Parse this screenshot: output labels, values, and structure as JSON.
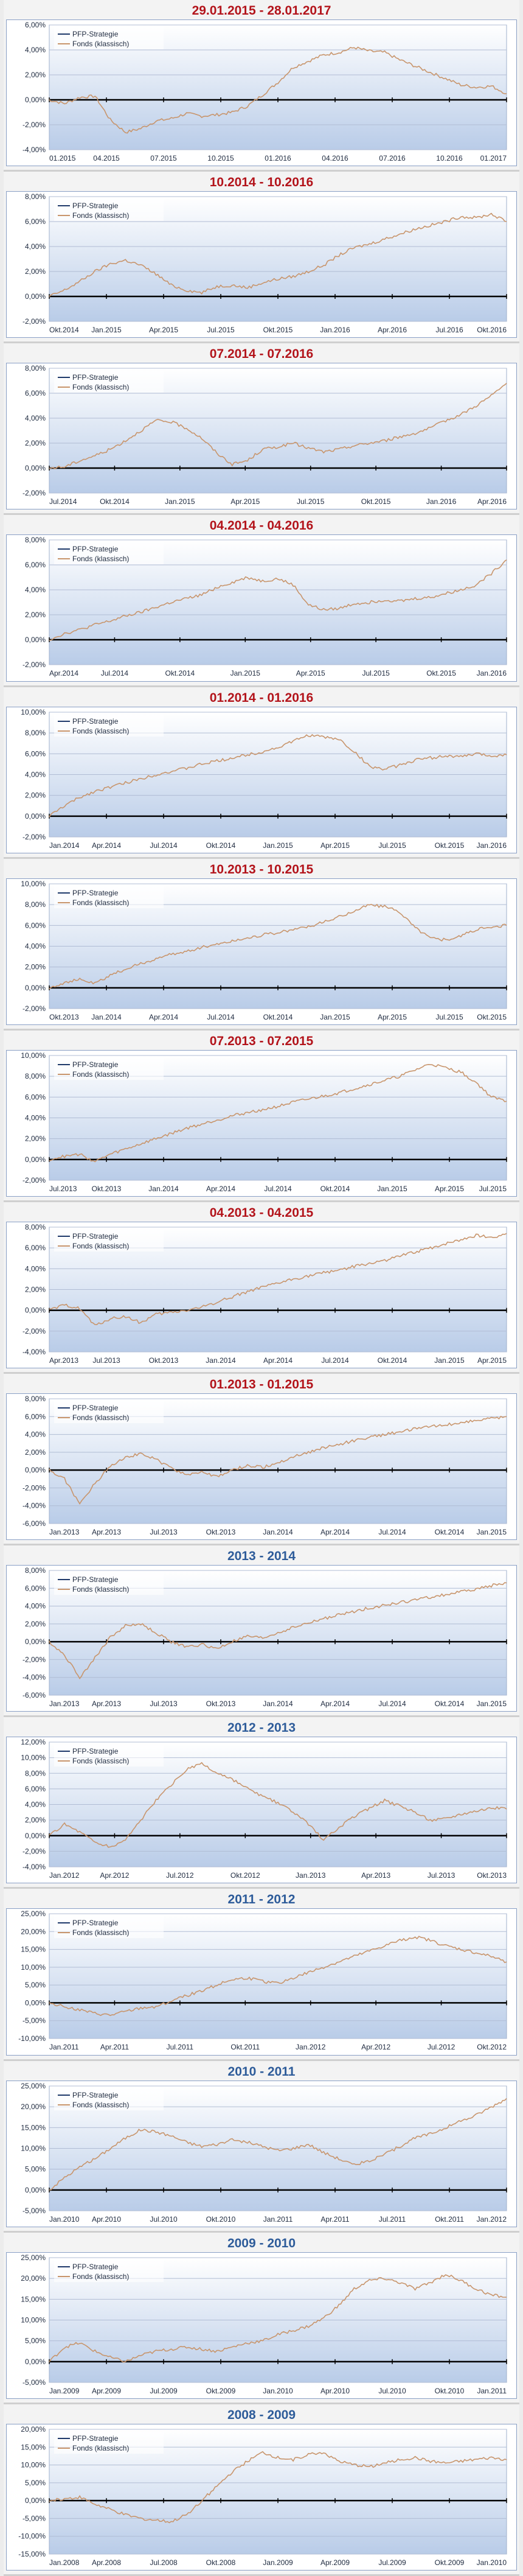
{
  "chart_data": [
    {
      "type": "line",
      "title": "29.01.2015 - 28.01.2017",
      "title_color": "#b3141b",
      "legend": [
        "PFP-Strategie",
        "Fonds (klassisch)"
      ],
      "legend_position": "top-left",
      "y_ticks": [
        "6,00%",
        "4,00%",
        "2,00%",
        "0,00%",
        "-2,00%",
        "-4,00%"
      ],
      "ylim": [
        -4,
        6
      ],
      "x_ticks": [
        "01.2015",
        "04.2015",
        "07.2015",
        "10.2015",
        "01.2016",
        "04.2016",
        "07.2016",
        "10.2016",
        "01.2017"
      ],
      "series": [
        {
          "name": "Fonds (klassisch)",
          "color": "#c8956c",
          "values": [
            0.0,
            -0.3,
            0.2,
            0.3,
            -1.6,
            -2.6,
            -2.3,
            -1.7,
            -1.5,
            -1.1,
            -1.3,
            -1.2,
            -1.0,
            -0.5,
            0.4,
            1.4,
            2.6,
            3.1,
            3.6,
            3.8,
            4.2,
            3.9,
            3.8,
            3.2,
            2.7,
            2.2,
            1.7,
            1.2,
            1.0,
            1.1,
            0.5
          ]
        }
      ]
    },
    {
      "type": "line",
      "title": "10.2014 - 10.2016",
      "title_color": "#b3141b",
      "legend": [
        "PFP-Strategie",
        "Fonds (klassisch)"
      ],
      "legend_position": "top-left",
      "y_ticks": [
        "8,00%",
        "6,00%",
        "4,00%",
        "2,00%",
        "0,00%",
        "-2,00%"
      ],
      "ylim": [
        -2,
        8
      ],
      "x_ticks": [
        "Okt.2014",
        "Jan.2015",
        "Apr.2015",
        "Jul.2015",
        "Okt.2015",
        "Jan.2016",
        "Apr.2016",
        "Jul.2016",
        "Okt.2016"
      ],
      "series": [
        {
          "name": "Fonds (klassisch)",
          "color": "#c8956c",
          "values": [
            0.0,
            0.5,
            1.2,
            2.0,
            2.6,
            2.9,
            2.5,
            1.8,
            0.9,
            0.5,
            0.3,
            0.8,
            0.9,
            0.7,
            1.1,
            1.4,
            1.6,
            2.0,
            2.5,
            3.3,
            3.9,
            4.2,
            4.6,
            5.0,
            5.4,
            5.7,
            6.0,
            6.4,
            6.3,
            6.6,
            6.0
          ]
        }
      ]
    },
    {
      "type": "line",
      "title": "07.2014 - 07.2016",
      "title_color": "#b3141b",
      "legend": [
        "PFP-Strategie",
        "Fonds (klassisch)"
      ],
      "legend_position": "top-left",
      "y_ticks": [
        "8,00%",
        "6,00%",
        "4,00%",
        "2,00%",
        "0,00%",
        "-2,00%"
      ],
      "ylim": [
        -2,
        8
      ],
      "x_ticks": [
        "Jul.2014",
        "Okt.2014",
        "Jan.2015",
        "Apr.2015",
        "Jul.2015",
        "Okt.2015",
        "Jan.2016",
        "Apr.2016"
      ],
      "series": [
        {
          "name": "Fonds (klassisch)",
          "color": "#c8956c",
          "values": [
            0.0,
            0.1,
            0.6,
            1.0,
            1.5,
            2.2,
            3.0,
            3.8,
            3.7,
            3.2,
            2.4,
            1.2,
            0.3,
            0.6,
            1.5,
            1.7,
            2.0,
            1.6,
            1.3,
            1.5,
            1.8,
            2.0,
            2.2,
            2.5,
            2.8,
            3.2,
            3.8,
            4.3,
            5.0,
            5.8,
            6.8
          ]
        }
      ]
    },
    {
      "type": "line",
      "title": "04.2014 - 04.2016",
      "title_color": "#b3141b",
      "legend": [
        "PFP-Strategie",
        "Fonds (klassisch)"
      ],
      "legend_position": "top-left",
      "y_ticks": [
        "8,00%",
        "6,00%",
        "4,00%",
        "2,00%",
        "0,00%",
        "-2,00%"
      ],
      "ylim": [
        -2,
        8
      ],
      "x_ticks": [
        "Apr.2014",
        "Jul.2014",
        "Okt.2014",
        "Jan.2015",
        "Apr.2015",
        "Jul.2015",
        "Okt.2015",
        "Jan.2016"
      ],
      "series": [
        {
          "name": "Fonds (klassisch)",
          "color": "#c8956c",
          "values": [
            0.0,
            0.5,
            0.8,
            1.2,
            1.5,
            1.9,
            2.2,
            2.6,
            3.0,
            3.3,
            3.6,
            4.2,
            4.6,
            5.0,
            4.7,
            4.9,
            4.4,
            2.8,
            2.4,
            2.5,
            2.9,
            3.0,
            3.2,
            3.1,
            3.3,
            3.4,
            3.7,
            4.0,
            4.4,
            5.3,
            6.4
          ]
        }
      ]
    },
    {
      "type": "line",
      "title": "01.2014 - 01.2016",
      "title_color": "#b3141b",
      "legend": [
        "PFP-Strategie",
        "Fonds (klassisch)"
      ],
      "legend_position": "top-left",
      "y_ticks": [
        "10,00%",
        "8,00%",
        "6,00%",
        "4,00%",
        "2,00%",
        "0,00%",
        "-2,00%"
      ],
      "ylim": [
        -2,
        10
      ],
      "x_ticks": [
        "Jan.2014",
        "Apr.2014",
        "Jul.2014",
        "Okt.2014",
        "Jan.2015",
        "Apr.2015",
        "Jul.2015",
        "Okt.2015",
        "Jan.2016"
      ],
      "series": [
        {
          "name": "Fonds (klassisch)",
          "color": "#c8956c",
          "values": [
            0.0,
            1.0,
            1.8,
            2.4,
            2.8,
            3.2,
            3.6,
            4.0,
            4.3,
            4.6,
            5.0,
            5.3,
            5.6,
            5.9,
            6.2,
            6.6,
            7.2,
            7.8,
            7.6,
            7.4,
            6.2,
            4.8,
            4.5,
            4.9,
            5.4,
            5.6,
            5.8,
            5.7,
            6.0,
            5.8,
            5.9
          ]
        }
      ]
    },
    {
      "type": "line",
      "title": "10.2013 - 10.2015",
      "title_color": "#b3141b",
      "legend": [
        "PFP-Strategie",
        "Fonds (klassisch)"
      ],
      "legend_position": "top-left",
      "y_ticks": [
        "10,00%",
        "8,00%",
        "6,00%",
        "4,00%",
        "2,00%",
        "0,00%",
        "-2,00%"
      ],
      "ylim": [
        -2,
        10
      ],
      "x_ticks": [
        "Okt.2013",
        "Jan.2014",
        "Apr.2014",
        "Jul.2014",
        "Okt.2014",
        "Jan.2015",
        "Apr.2015",
        "Jul.2015",
        "Okt.2015"
      ],
      "series": [
        {
          "name": "Fonds (klassisch)",
          "color": "#c8956c",
          "values": [
            0.0,
            0.5,
            0.8,
            0.4,
            1.2,
            1.8,
            2.3,
            2.8,
            3.2,
            3.5,
            3.9,
            4.2,
            4.5,
            4.8,
            5.1,
            5.3,
            5.6,
            5.9,
            6.3,
            6.8,
            7.4,
            8.0,
            7.8,
            7.3,
            5.8,
            4.8,
            4.6,
            5.0,
            5.6,
            5.8,
            6.0
          ]
        }
      ]
    },
    {
      "type": "line",
      "title": "07.2013 - 07.2015",
      "title_color": "#b3141b",
      "legend": [
        "PFP-Strategie",
        "Fonds (klassisch)"
      ],
      "legend_position": "top-left",
      "y_ticks": [
        "10,00%",
        "8,00%",
        "6,00%",
        "4,00%",
        "2,00%",
        "0,00%",
        "-2,00%"
      ],
      "ylim": [
        -2,
        10
      ],
      "x_ticks": [
        "Jul.2013",
        "Okt.2013",
        "Jan.2014",
        "Apr.2014",
        "Jul.2014",
        "Okt.2014",
        "Jan.2015",
        "Apr.2015",
        "Jul.2015"
      ],
      "series": [
        {
          "name": "Fonds (klassisch)",
          "color": "#c8956c",
          "values": [
            0.0,
            0.3,
            0.5,
            -0.2,
            0.5,
            1.0,
            1.5,
            2.0,
            2.5,
            3.0,
            3.4,
            3.8,
            4.2,
            4.5,
            4.8,
            5.1,
            5.5,
            5.8,
            6.1,
            6.4,
            6.8,
            7.2,
            7.6,
            8.0,
            8.6,
            9.2,
            8.8,
            8.4,
            7.4,
            6.0,
            5.6
          ]
        }
      ]
    },
    {
      "type": "line",
      "title": "04.2013 - 04.2015",
      "title_color": "#b3141b",
      "legend": [
        "PFP-Strategie",
        "Fonds (klassisch)"
      ],
      "legend_position": "top-left",
      "y_ticks": [
        "8,00%",
        "6,00%",
        "4,00%",
        "2,00%",
        "0,00%",
        "-2,00%",
        "-4,00%"
      ],
      "ylim": [
        -4,
        8
      ],
      "x_ticks": [
        "Apr.2013",
        "Jul.2013",
        "Okt.2013",
        "Jan.2014",
        "Apr.2014",
        "Jul.2014",
        "Okt.2014",
        "Jan.2015",
        "Apr.2015"
      ],
      "series": [
        {
          "name": "Fonds (klassisch)",
          "color": "#c8956c",
          "values": [
            0.0,
            0.5,
            0.2,
            -1.5,
            -0.8,
            -0.6,
            -1.2,
            -0.4,
            -0.2,
            0.0,
            0.3,
            0.8,
            1.3,
            1.8,
            2.2,
            2.6,
            3.0,
            3.3,
            3.6,
            3.9,
            4.2,
            4.5,
            4.8,
            5.2,
            5.6,
            6.0,
            6.4,
            6.8,
            7.2,
            7.0,
            7.4
          ]
        }
      ]
    },
    {
      "type": "line",
      "title": "01.2013 - 01.2015",
      "title_color": "#b3141b",
      "legend": [
        "PFP-Strategie",
        "Fonds (klassisch)"
      ],
      "legend_position": "top-left",
      "y_ticks": [
        "8,00%",
        "6,00%",
        "4,00%",
        "2,00%",
        "0,00%",
        "-2,00%",
        "-4,00%",
        "-6,00%"
      ],
      "ylim": [
        -6,
        8
      ],
      "x_ticks": [
        "Jan.2013",
        "Apr.2013",
        "Jul.2013",
        "Okt.2013",
        "Jan.2014",
        "Apr.2014",
        "Jul.2014",
        "Okt.2014",
        "Jan.2015"
      ],
      "series": [
        {
          "name": "Fonds (klassisch)",
          "color": "#c8956c",
          "values": [
            0.0,
            -1.0,
            -3.8,
            -1.5,
            0.5,
            1.5,
            1.8,
            1.2,
            0.2,
            -0.5,
            -0.2,
            -0.8,
            0.0,
            0.5,
            0.3,
            0.8,
            1.5,
            2.0,
            2.5,
            2.9,
            3.3,
            3.7,
            4.0,
            4.3,
            4.6,
            4.9,
            5.1,
            5.3,
            5.6,
            5.8,
            6.0
          ]
        }
      ]
    },
    {
      "type": "line",
      "title": "2013 - 2014",
      "title_color": "#2e5c9a",
      "legend": [
        "PFP-Strategie",
        "Fonds (klassisch)"
      ],
      "legend_position": "top-left",
      "y_ticks": [
        "8,00%",
        "6,00%",
        "4,00%",
        "2,00%",
        "0,00%",
        "-2,00%",
        "-4,00%",
        "-6,00%"
      ],
      "ylim": [
        -6,
        8
      ],
      "x_ticks": [
        "Jan.2013",
        "Apr.2013",
        "Jul.2013",
        "Okt.2013",
        "Jan.2014",
        "Apr.2014",
        "Jul.2014",
        "Okt.2014",
        "Jan.2015"
      ],
      "series": [
        {
          "name": "Fonds (klassisch)",
          "color": "#c8956c",
          "values": [
            0.0,
            -1.5,
            -4.0,
            -1.8,
            0.5,
            1.8,
            2.0,
            1.0,
            0.0,
            -0.6,
            -0.3,
            -0.8,
            0.0,
            0.6,
            0.4,
            1.0,
            1.6,
            2.1,
            2.6,
            3.0,
            3.4,
            3.8,
            4.1,
            4.4,
            4.7,
            5.0,
            5.3,
            5.6,
            5.9,
            6.3,
            6.6
          ]
        }
      ]
    },
    {
      "type": "line",
      "title": "2012 - 2013",
      "title_color": "#2e5c9a",
      "legend": [
        "PFP-Strategie",
        "Fonds (klassisch)"
      ],
      "legend_position": "top-left",
      "y_ticks": [
        "12,00%",
        "10,00%",
        "8,00%",
        "6,00%",
        "4,00%",
        "2,00%",
        "0,00%",
        "-2,00%",
        "-4,00%"
      ],
      "ylim": [
        -4,
        12
      ],
      "x_ticks": [
        "Jan.2012",
        "Apr.2012",
        "Jul.2012",
        "Okt.2012",
        "Jan.2013",
        "Apr.2013",
        "Jul.2013",
        "Okt.2013"
      ],
      "series": [
        {
          "name": "Fonds (klassisch)",
          "color": "#c8956c",
          "values": [
            0.0,
            1.5,
            0.5,
            -0.8,
            -1.5,
            -0.5,
            2.0,
            4.5,
            6.5,
            8.5,
            9.2,
            8.0,
            7.2,
            6.0,
            5.0,
            4.2,
            3.0,
            1.5,
            -0.5,
            1.0,
            2.5,
            3.5,
            4.5,
            3.8,
            3.0,
            2.0,
            2.2,
            2.8,
            3.2,
            3.6,
            3.4
          ]
        }
      ]
    },
    {
      "type": "line",
      "title": "2011 - 2012",
      "title_color": "#2e5c9a",
      "legend": [
        "PFP-Strategie",
        "Fonds (klassisch)"
      ],
      "legend_position": "top-left",
      "y_ticks": [
        "25,00%",
        "20,00%",
        "15,00%",
        "10,00%",
        "5,00%",
        "0,00%",
        "-5,00%",
        "-10,00%"
      ],
      "ylim": [
        -10,
        25
      ],
      "x_ticks": [
        "Jan.2011",
        "Apr.2011",
        "Jul.2011",
        "Okt.2011",
        "Jan.2012",
        "Apr.2012",
        "Jul.2012",
        "Okt.2012"
      ],
      "series": [
        {
          "name": "Fonds (klassisch)",
          "color": "#c8956c",
          "values": [
            0.0,
            -1.0,
            -2.0,
            -3.0,
            -3.5,
            -2.5,
            -1.5,
            -1.0,
            0.5,
            2.0,
            3.5,
            5.0,
            6.5,
            7.0,
            6.0,
            5.5,
            7.0,
            8.5,
            10.0,
            11.5,
            13.0,
            14.5,
            16.0,
            17.5,
            18.5,
            17.5,
            16.0,
            15.0,
            14.0,
            13.0,
            11.5
          ]
        }
      ]
    },
    {
      "type": "line",
      "title": "2010 - 2011",
      "title_color": "#2e5c9a",
      "legend": [
        "PFP-Strategie",
        "Fonds (klassisch)"
      ],
      "legend_position": "top-left",
      "y_ticks": [
        "25,00%",
        "20,00%",
        "15,00%",
        "10,00%",
        "5,00%",
        "0,00%",
        "-5,00%"
      ],
      "ylim": [
        -5,
        25
      ],
      "x_ticks": [
        "Jan.2010",
        "Apr.2010",
        "Jul.2010",
        "Okt.2010",
        "Jan.2011",
        "Apr.2011",
        "Jul.2011",
        "Okt.2011",
        "Jan.2012"
      ],
      "series": [
        {
          "name": "Fonds (klassisch)",
          "color": "#c8956c",
          "values": [
            0.0,
            3.0,
            5.5,
            7.5,
            10.0,
            12.5,
            14.5,
            14.0,
            13.0,
            11.5,
            10.5,
            11.0,
            12.0,
            11.5,
            10.5,
            9.5,
            10.0,
            11.0,
            9.0,
            7.5,
            6.0,
            7.0,
            8.5,
            10.5,
            12.5,
            13.5,
            15.0,
            16.5,
            18.0,
            20.0,
            22.0
          ]
        }
      ]
    },
    {
      "type": "line",
      "title": "2009 - 2010",
      "title_color": "#2e5c9a",
      "legend": [
        "PFP-Strategie",
        "Fonds (klassisch)"
      ],
      "legend_position": "top-left",
      "y_ticks": [
        "25,00%",
        "20,00%",
        "15,00%",
        "10,00%",
        "5,00%",
        "0,00%",
        "-5,00%"
      ],
      "ylim": [
        -5,
        25
      ],
      "x_ticks": [
        "Jan.2009",
        "Apr.2009",
        "Jul.2009",
        "Okt.2009",
        "Jan.2010",
        "Apr.2010",
        "Jul.2010",
        "Okt.2010",
        "Jan.2011"
      ],
      "series": [
        {
          "name": "Fonds (klassisch)",
          "color": "#c8956c",
          "values": [
            0.0,
            3.5,
            4.5,
            2.5,
            1.0,
            0.0,
            1.5,
            2.5,
            3.0,
            3.5,
            3.0,
            2.5,
            3.5,
            4.5,
            5.0,
            6.5,
            7.5,
            8.5,
            10.5,
            13.5,
            17.5,
            19.5,
            20.0,
            19.0,
            17.5,
            19.0,
            21.0,
            19.5,
            17.5,
            16.0,
            15.5
          ]
        }
      ]
    },
    {
      "type": "line",
      "title": "2008 - 2009",
      "title_color": "#2e5c9a",
      "legend": [
        "PFP-Strategie",
        "Fonds (klassisch)"
      ],
      "legend_position": "top-left",
      "y_ticks": [
        "20,00%",
        "15,00%",
        "10,00%",
        "5,00%",
        "0,00%",
        "-5,00%",
        "-10,00%",
        "-15,00%"
      ],
      "ylim": [
        -15,
        20
      ],
      "x_ticks": [
        "Jan.2008",
        "Apr.2008",
        "Jul.2008",
        "Okt.2008",
        "Jan.2009",
        "Apr.2009",
        "Jul.2009",
        "Okt.2009",
        "Jan.2010"
      ],
      "series": [
        {
          "name": "Fonds (klassisch)",
          "color": "#c8956c",
          "values": [
            0.0,
            0.5,
            1.0,
            -1.0,
            -2.5,
            -4.0,
            -5.0,
            -5.5,
            -6.0,
            -4.0,
            0.0,
            4.0,
            8.0,
            11.0,
            13.5,
            12.0,
            11.5,
            13.0,
            13.5,
            11.0,
            10.0,
            9.5,
            10.5,
            11.5,
            12.0,
            11.0,
            10.5,
            11.0,
            11.5,
            12.0,
            11.5
          ]
        }
      ]
    }
  ]
}
